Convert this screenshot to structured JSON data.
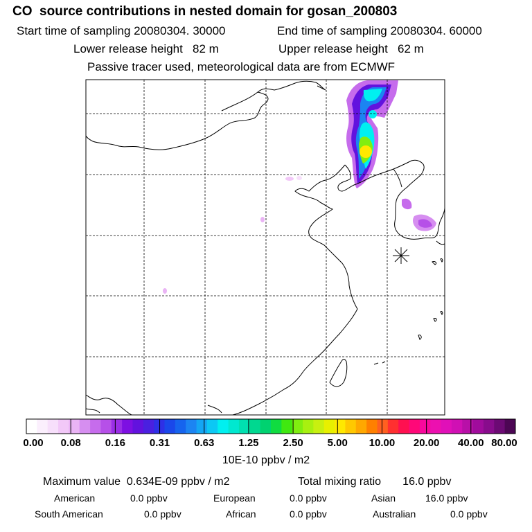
{
  "header": {
    "title": "CO  source contributions in nested domain for gosan_200803",
    "start_time": "Start time of sampling 20080304. 30000",
    "end_time": "End time of sampling 20080304. 60000",
    "lower_release": "Lower release height   82 m",
    "upper_release": "Upper release height   62 m",
    "tracer_note": "Passive tracer used, meteorological data are from ECMWF"
  },
  "colorbar": {
    "ticks": [
      "0.00",
      "0.08",
      "0.16",
      "0.31",
      "0.63",
      "1.25",
      "2.50",
      "5.00",
      "10.00",
      "20.00",
      "40.00",
      "80.00"
    ],
    "unit": "10E-10 ppbv / m2",
    "colors": [
      "#ffffff",
      "#fbeffd",
      "#f7dffb",
      "#f2c8f8",
      "#eab4f5",
      "#d68ef0",
      "#c66cec",
      "#b650e8",
      "#9a2ee6",
      "#7d10e2",
      "#6212de",
      "#4a20e0",
      "#2e30e6",
      "#1a48ea",
      "#1664ee",
      "#1c84f2",
      "#14a6f4",
      "#0cc8f4",
      "#00f0f0",
      "#00e8d0",
      "#00e0b0",
      "#00d890",
      "#00d270",
      "#10dc40",
      "#40e810",
      "#80ee10",
      "#a8f010",
      "#c8f010",
      "#e8f000",
      "#ffe800",
      "#ffc800",
      "#ffa800",
      "#ff8000",
      "#ff6020",
      "#ff3030",
      "#ff1050",
      "#ff0878",
      "#f8089c",
      "#ec10b0",
      "#e010b8",
      "#d010b4",
      "#b810a8",
      "#a00c9c",
      "#880c8c",
      "#6c0a74",
      "#4c0654"
    ]
  },
  "stats": {
    "max_value": "Maximum value  0.634E-09 ppbv / m2",
    "total_mixing": "Total mixing ratio       16.0 ppbv"
  },
  "regions": [
    {
      "name": "American",
      "value": "0.0 ppbv"
    },
    {
      "name": "European",
      "value": "0.0 ppbv"
    },
    {
      "name": "Asian",
      "value": "16.0 ppbv"
    },
    {
      "name": "South American",
      "value": "0.0 ppbv"
    },
    {
      "name": "African",
      "value": "0.0 ppbv"
    },
    {
      "name": "Australian",
      "value": "0.0 ppbv"
    }
  ],
  "map": {
    "receptor_marker": "asterisk-icon"
  }
}
